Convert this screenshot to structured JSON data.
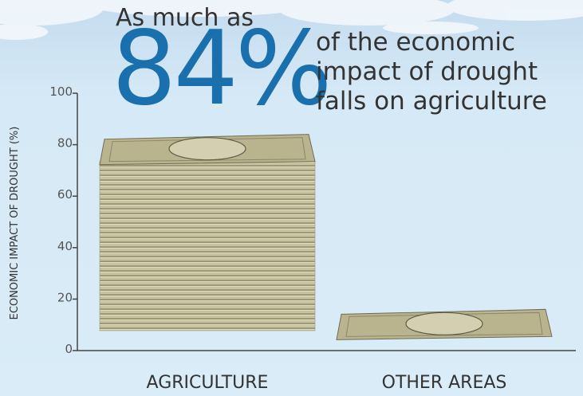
{
  "chart_data": {
    "type": "bar",
    "headline": {
      "lead": "As much as",
      "figure": "84%",
      "tail": [
        "of the economic",
        "impact of drought",
        "falls on agriculture"
      ]
    },
    "y_label": "ECONOMIC IMPACT OF DROUGHT (%)",
    "categories": [
      "AGRICULTURE",
      "OTHER AREAS"
    ],
    "values": [
      84,
      16
    ],
    "color": "#b9b48e",
    "ylim": [
      0,
      100
    ],
    "yticks": [
      0,
      20,
      40,
      60,
      80,
      100
    ]
  }
}
